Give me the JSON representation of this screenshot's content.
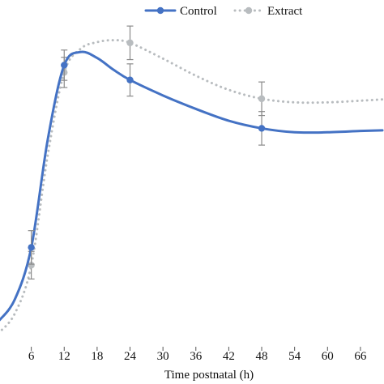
{
  "chart_data": {
    "type": "line",
    "xlabel": "Time postnatal (h)",
    "ylabel": "",
    "title": "",
    "x_ticks": [
      6,
      12,
      18,
      24,
      30,
      36,
      42,
      48,
      54,
      60,
      66
    ],
    "xlim": [
      0,
      70
    ],
    "ylim": [
      0,
      100
    ],
    "grid": false,
    "legend_position": "top",
    "series": [
      {
        "name": "Control",
        "color": "#4472c4",
        "style": "solid",
        "x": [
          6,
          12,
          24,
          48
        ],
        "y": [
          30.2,
          85.6,
          81.1,
          66.4
        ],
        "err": [
          5.1,
          4.6,
          4.9,
          5.1
        ],
        "curve": [
          [
            0,
            7.7
          ],
          [
            3,
            14.4
          ],
          [
            6,
            30.2
          ],
          [
            9,
            63
          ],
          [
            12,
            85.6
          ],
          [
            15,
            89.6
          ],
          [
            18,
            87.8
          ],
          [
            21,
            84.2
          ],
          [
            24,
            81.1
          ],
          [
            30,
            76.4
          ],
          [
            36,
            72.3
          ],
          [
            42,
            68.7
          ],
          [
            48,
            66.4
          ],
          [
            54,
            65.2
          ],
          [
            60,
            65.2
          ],
          [
            66,
            65.6
          ],
          [
            70,
            65.8
          ]
        ]
      },
      {
        "name": "Extract",
        "color": "#b8bcbf",
        "style": "dotted",
        "x": [
          6,
          12,
          24,
          48
        ],
        "y": [
          24.8,
          83.4,
          92.4,
          75.4
        ],
        "err": [
          4.2,
          4.6,
          5.1,
          5.1
        ],
        "curve": [
          [
            0,
            4.1
          ],
          [
            3,
            10.1
          ],
          [
            6,
            24.8
          ],
          [
            9,
            58.3
          ],
          [
            12,
            83.4
          ],
          [
            15,
            90.6
          ],
          [
            18,
            92.6
          ],
          [
            21,
            93.2
          ],
          [
            24,
            92.4
          ],
          [
            30,
            87.6
          ],
          [
            36,
            82.4
          ],
          [
            42,
            78.1
          ],
          [
            48,
            75.4
          ],
          [
            54,
            74.3
          ],
          [
            60,
            74.3
          ],
          [
            66,
            74.8
          ],
          [
            70,
            75.2
          ]
        ]
      }
    ]
  }
}
